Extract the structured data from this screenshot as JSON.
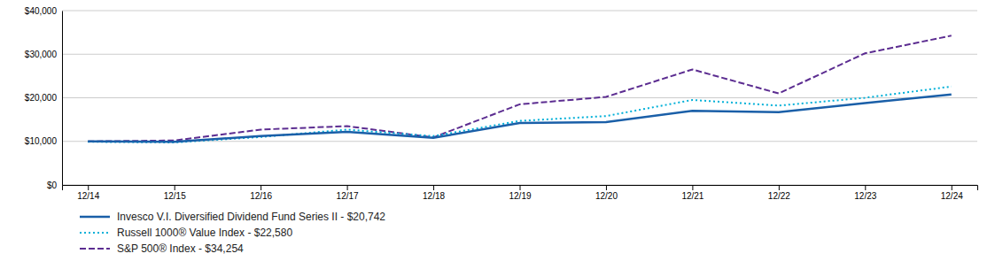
{
  "chart_data": {
    "type": "line",
    "categories": [
      "12/14",
      "12/15",
      "12/16",
      "12/17",
      "12/18",
      "12/19",
      "12/20",
      "12/21",
      "12/22",
      "12/23",
      "12/24"
    ],
    "series": [
      {
        "name": "Invesco V.I. Diversified Dividend Fund Series II - $20,742",
        "color": "#1a5fa8",
        "line_style": "solid",
        "values": [
          10000,
          9900,
          11200,
          12200,
          10800,
          14200,
          14400,
          17000,
          16700,
          18800,
          20742
        ]
      },
      {
        "name": "Russell 1000® Value Index - $22,580",
        "color": "#00b0d8",
        "line_style": "dotted",
        "values": [
          9900,
          9750,
          11000,
          12700,
          11200,
          14700,
          15800,
          19500,
          18200,
          20000,
          22580
        ]
      },
      {
        "name": "S&P 500® Index - $34,254",
        "color": "#5c2d91",
        "line_style": "dashed",
        "values": [
          10000,
          10200,
          12700,
          13500,
          10900,
          18500,
          20200,
          26500,
          21000,
          30200,
          34254
        ]
      }
    ],
    "ylim": [
      0,
      40000
    ],
    "yticks": [
      {
        "value": 0,
        "label": "$0"
      },
      {
        "value": 10000,
        "label": "$10,000"
      },
      {
        "value": 20000,
        "label": "$20,000"
      },
      {
        "value": 30000,
        "label": "$30,000"
      },
      {
        "value": 40000,
        "label": "$40,000"
      }
    ],
    "grid": true,
    "legend": "bottom"
  }
}
